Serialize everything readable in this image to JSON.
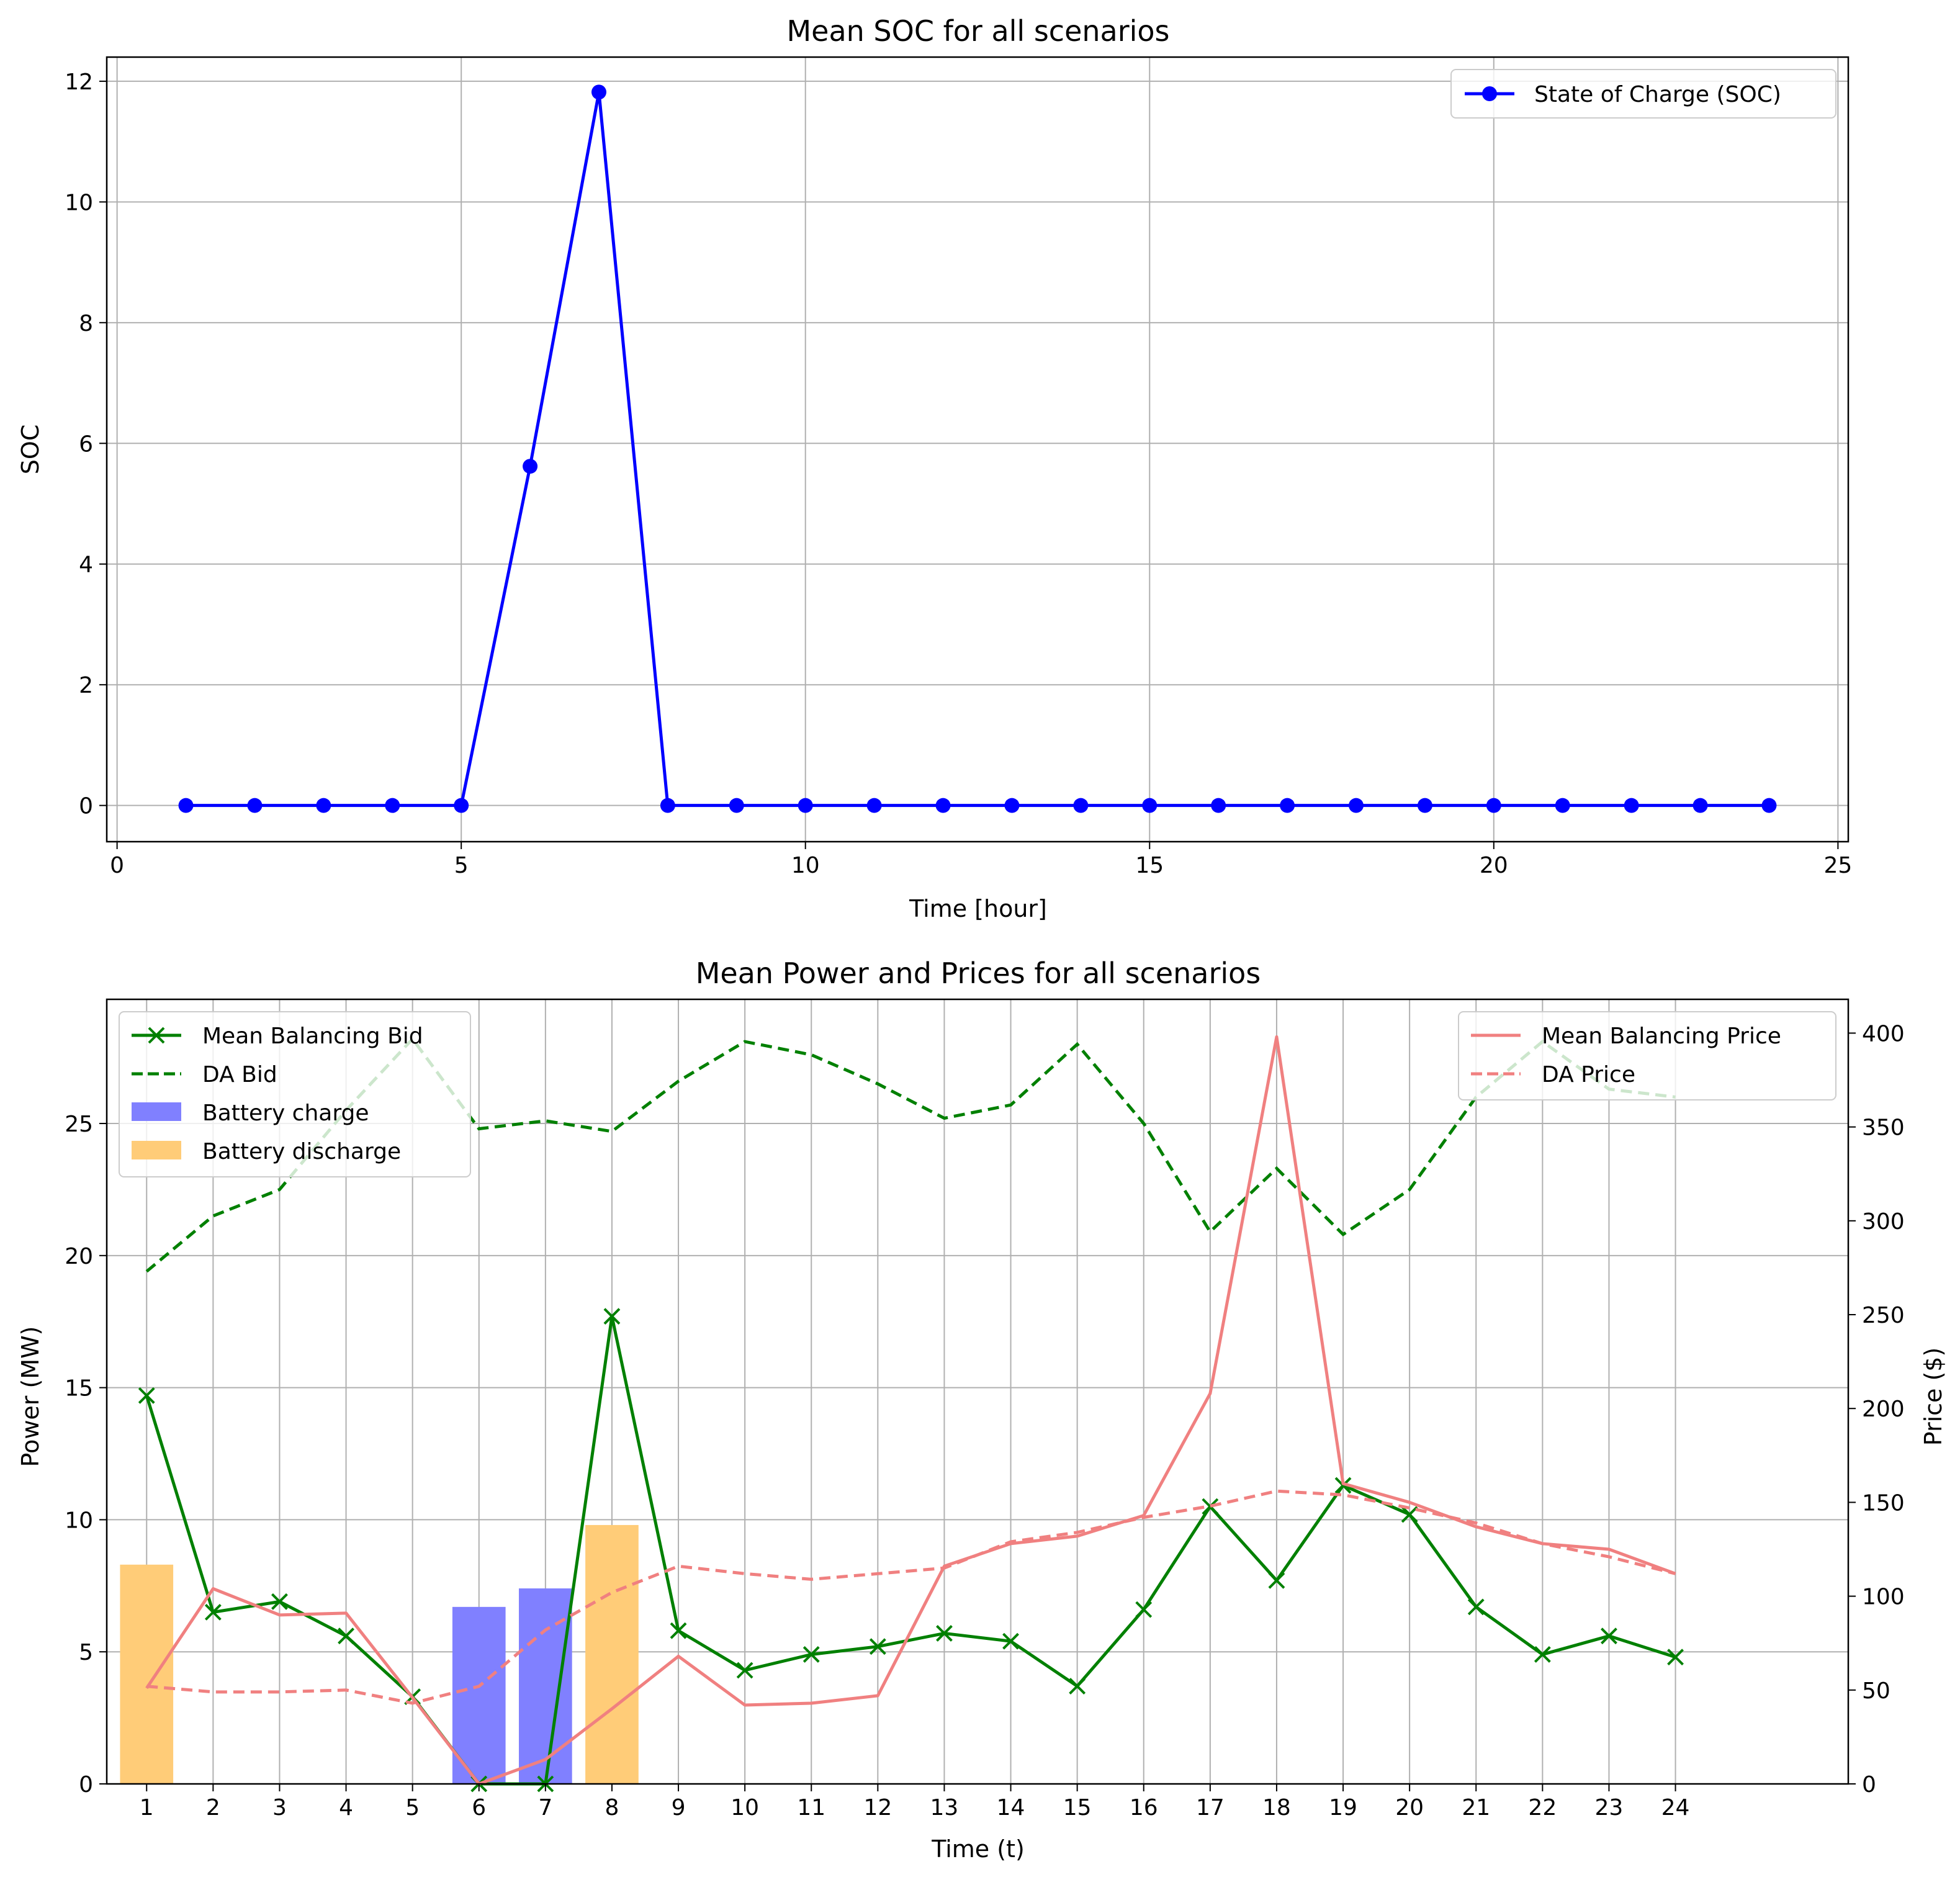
{
  "colors": {
    "soc_line": "#0000ff",
    "balancing_bid": "#008000",
    "da_bid": "#008000",
    "battery_charge": "#8080ff",
    "battery_discharge": "#ffcc78",
    "balancing_price": "#f08080",
    "da_price": "#f08080",
    "grid": "#b0b0b0"
  },
  "chart_data": [
    {
      "type": "line",
      "title": "Mean SOC for all scenarios",
      "xlabel": "Time [hour]",
      "ylabel": "SOC",
      "xlim": [
        -0.15,
        25.15
      ],
      "ylim": [
        -0.6,
        12.4
      ],
      "xticks": [
        0,
        5,
        10,
        15,
        20,
        25
      ],
      "yticks": [
        0,
        2,
        4,
        6,
        8,
        10,
        12
      ],
      "grid": true,
      "legend_position": "upper right",
      "series": [
        {
          "name": "State of Charge (SOC)",
          "x": [
            1,
            2,
            3,
            4,
            5,
            6,
            7,
            8,
            9,
            10,
            11,
            12,
            13,
            14,
            15,
            16,
            17,
            18,
            19,
            20,
            21,
            22,
            23,
            24
          ],
          "values": [
            0,
            0,
            0,
            0,
            0,
            5.62,
            11.82,
            0,
            0,
            0,
            0,
            0,
            0,
            0,
            0,
            0,
            0,
            0,
            0,
            0,
            0,
            0,
            0,
            0
          ]
        }
      ]
    },
    {
      "type": "bar+line",
      "title": "Mean Power and Prices for all scenarios",
      "xlabel": "Time (t)",
      "ylabel": "Power (MW)",
      "ylabel_right": "Price ($)",
      "categories": [
        "1",
        "2",
        "3",
        "4",
        "5",
        "6",
        "7",
        "8",
        "9",
        "10",
        "11",
        "12",
        "13",
        "14",
        "15",
        "16",
        "17",
        "18",
        "19",
        "20",
        "21",
        "22",
        "23",
        "24"
      ],
      "xlim": [
        -0.6,
        25.6
      ],
      "ylim": [
        0,
        29.7
      ],
      "ylim_right": [
        0,
        418
      ],
      "yticks": [
        0,
        5,
        10,
        15,
        20,
        25
      ],
      "yticks_right": [
        0,
        50,
        100,
        150,
        200,
        250,
        300,
        350,
        400
      ],
      "grid": true,
      "legend_left_position": "upper left",
      "legend_right_position": "upper right",
      "series": [
        {
          "name": "Mean Balancing Bid",
          "axis": "left",
          "style": "line-x",
          "values": [
            14.7,
            6.5,
            6.9,
            5.6,
            3.3,
            0,
            0,
            17.7,
            5.8,
            4.3,
            4.9,
            5.2,
            5.7,
            5.4,
            3.7,
            6.6,
            10.5,
            7.7,
            11.3,
            10.2,
            6.7,
            4.9,
            5.6,
            4.8
          ]
        },
        {
          "name": "DA Bid",
          "axis": "left",
          "style": "dashed",
          "values": [
            19.4,
            21.5,
            22.5,
            25.5,
            28.2,
            24.8,
            25.1,
            24.7,
            26.6,
            28.1,
            27.6,
            26.5,
            25.2,
            25.7,
            28.0,
            25.0,
            20.9,
            23.3,
            20.8,
            22.5,
            26.0,
            28.1,
            26.3,
            26.0
          ]
        },
        {
          "name": "Battery charge",
          "axis": "left",
          "style": "bar",
          "values": [
            0,
            0,
            0,
            0,
            0,
            6.7,
            7.4,
            0,
            0,
            0,
            0,
            0,
            0,
            0,
            0,
            0,
            0,
            0,
            0,
            0,
            0,
            0,
            0,
            0
          ]
        },
        {
          "name": "Battery discharge",
          "axis": "left",
          "style": "bar",
          "values": [
            8.3,
            0,
            0,
            0,
            0,
            0,
            0,
            9.8,
            0,
            0,
            0,
            0,
            0,
            0,
            0,
            0,
            0,
            0,
            0,
            0,
            0,
            0,
            0,
            0
          ]
        },
        {
          "name": "Mean Balancing Price",
          "axis": "right",
          "style": "line",
          "values": [
            51,
            104,
            90,
            91,
            46,
            0,
            13,
            40,
            68,
            42,
            43,
            47,
            116,
            128,
            132,
            143,
            208,
            398,
            160,
            150,
            137,
            128,
            125,
            112
          ]
        },
        {
          "name": "DA Price",
          "axis": "right",
          "style": "dashed",
          "values": [
            52,
            49,
            49,
            50,
            43,
            52,
            82,
            102,
            116,
            112,
            109,
            112,
            115,
            129,
            134,
            142,
            148,
            156,
            154,
            147,
            139,
            128,
            121,
            112
          ]
        }
      ]
    }
  ]
}
